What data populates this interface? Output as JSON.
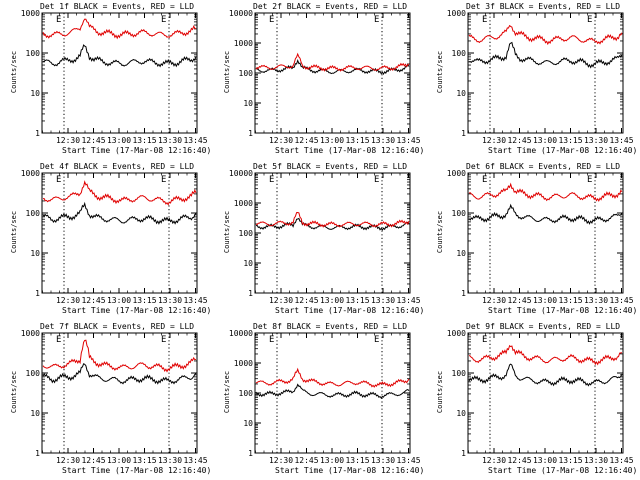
{
  "colors": {
    "events": "#000000",
    "lld": "#e00000"
  },
  "chart_data": [
    {
      "type": "line",
      "title": "Det 1f BLACK = Events, RED = LLD",
      "ylabel": "Counts/sec",
      "xlabel": "Start Time (17-Mar-08 12:16:40)",
      "yscale": "log",
      "ylim": [
        1,
        1000
      ],
      "ytick_labels": [
        "1",
        "10",
        "100",
        "1000"
      ],
      "xtick_labels": [
        "12:30",
        "12:45",
        "13:00",
        "13:15",
        "13:30",
        "13:45"
      ],
      "marker_label": "E",
      "series": [
        {
          "name": "BLACK",
          "values": [
            60,
            58,
            55,
            57,
            62,
            64,
            68,
            72,
            80,
            150,
            85,
            70,
            65,
            60,
            58,
            56,
            55,
            54,
            56,
            58,
            60,
            62,
            63,
            60,
            58,
            56,
            55,
            54,
            56,
            58,
            62,
            66,
            70,
            82
          ]
        },
        {
          "name": "RED",
          "values": [
            300,
            290,
            285,
            290,
            300,
            310,
            330,
            360,
            420,
            800,
            430,
            380,
            340,
            320,
            310,
            300,
            290,
            285,
            295,
            305,
            310,
            320,
            325,
            315,
            300,
            290,
            285,
            285,
            295,
            305,
            320,
            340,
            360,
            400
          ]
        }
      ]
    },
    {
      "type": "line",
      "title": "Det 2f BLACK = Events, RED = LLD",
      "ylabel": "Counts/sec",
      "xlabel": "Start Time (17-Mar-08 12:16:40)",
      "yscale": "log",
      "ylim": [
        1,
        10000
      ],
      "ytick_labels": [
        "1",
        "10",
        "100",
        "1000",
        "10000"
      ],
      "xtick_labels": [
        "12:30",
        "12:45",
        "13:00",
        "13:15",
        "13:30",
        "13:45"
      ],
      "marker_label": "E",
      "series": [
        {
          "name": "BLACK",
          "values": [
            130,
            125,
            120,
            120,
            125,
            130,
            135,
            140,
            145,
            280,
            145,
            130,
            125,
            120,
            118,
            115,
            112,
            110,
            112,
            115,
            118,
            120,
            122,
            120,
            118,
            115,
            112,
            112,
            115,
            118,
            125,
            135,
            145,
            165
          ]
        },
        {
          "name": "RED",
          "values": [
            160,
            155,
            150,
            150,
            155,
            160,
            165,
            170,
            175,
            360,
            175,
            160,
            155,
            150,
            148,
            145,
            142,
            140,
            142,
            145,
            148,
            150,
            152,
            150,
            148,
            145,
            142,
            142,
            145,
            148,
            155,
            165,
            175,
            200
          ]
        }
      ]
    },
    {
      "type": "line",
      "title": "Det 3f BLACK = Events, RED = LLD",
      "ylabel": "Counts/sec",
      "xlabel": "Start Time (17-Mar-08 12:16:40)",
      "yscale": "log",
      "ylim": [
        1,
        1000
      ],
      "ytick_labels": [
        "1",
        "10",
        "100",
        "1000"
      ],
      "xtick_labels": [
        "12:30",
        "12:45",
        "13:00",
        "13:15",
        "13:30",
        "13:45"
      ],
      "marker_label": "E",
      "series": [
        {
          "name": "BLACK",
          "values": [
            70,
            65,
            60,
            62,
            66,
            70,
            72,
            76,
            85,
            170,
            90,
            75,
            70,
            66,
            62,
            60,
            58,
            56,
            58,
            60,
            62,
            64,
            65,
            62,
            60,
            56,
            54,
            52,
            55,
            58,
            62,
            66,
            70,
            90
          ]
        },
        {
          "name": "RED",
          "values": [
            240,
            225,
            215,
            220,
            235,
            250,
            260,
            280,
            320,
            520,
            330,
            290,
            260,
            245,
            235,
            225,
            215,
            205,
            210,
            220,
            230,
            235,
            240,
            230,
            220,
            210,
            200,
            195,
            205,
            215,
            230,
            245,
            260,
            320
          ]
        }
      ]
    },
    {
      "type": "line",
      "title": "Det 4f BLACK = Events, RED = LLD",
      "ylabel": "Counts/sec",
      "xlabel": "Start Time (17-Mar-08 12:16:40)",
      "yscale": "log",
      "ylim": [
        1,
        1000
      ],
      "ytick_labels": [
        "1",
        "10",
        "100",
        "1000"
      ],
      "xtick_labels": [
        "12:30",
        "12:45",
        "13:00",
        "13:15",
        "13:30",
        "13:45"
      ],
      "marker_label": "E",
      "series": [
        {
          "name": "BLACK",
          "values": [
            80,
            75,
            70,
            72,
            76,
            80,
            82,
            86,
            95,
            160,
            95,
            80,
            75,
            72,
            70,
            68,
            66,
            64,
            66,
            68,
            70,
            72,
            73,
            70,
            68,
            66,
            64,
            62,
            65,
            68,
            72,
            76,
            80,
            100
          ]
        },
        {
          "name": "RED",
          "values": [
            240,
            225,
            215,
            220,
            235,
            250,
            260,
            280,
            320,
            600,
            330,
            290,
            260,
            245,
            235,
            225,
            215,
            205,
            210,
            220,
            230,
            235,
            240,
            230,
            220,
            210,
            200,
            195,
            205,
            215,
            230,
            245,
            260,
            320
          ]
        }
      ]
    },
    {
      "type": "line",
      "title": "Det 5f BLACK = Events, RED = LLD",
      "ylabel": "Counts/sec",
      "xlabel": "Start Time (17-Mar-08 12:16:40)",
      "yscale": "log",
      "ylim": [
        1,
        10000
      ],
      "ytick_labels": [
        "1",
        "10",
        "100",
        "1000",
        "10000"
      ],
      "xtick_labels": [
        "12:30",
        "12:45",
        "13:00",
        "13:15",
        "13:30",
        "13:45"
      ],
      "marker_label": "E",
      "series": [
        {
          "name": "BLACK",
          "values": [
            170,
            165,
            160,
            160,
            165,
            170,
            175,
            180,
            185,
            350,
            185,
            170,
            165,
            160,
            158,
            155,
            152,
            150,
            152,
            155,
            158,
            160,
            162,
            160,
            158,
            155,
            152,
            152,
            155,
            158,
            165,
            175,
            185,
            205
          ]
        },
        {
          "name": "RED",
          "values": [
            210,
            205,
            200,
            200,
            205,
            210,
            215,
            220,
            225,
            450,
            225,
            210,
            205,
            200,
            198,
            195,
            192,
            190,
            192,
            195,
            198,
            200,
            202,
            200,
            198,
            195,
            192,
            192,
            195,
            198,
            205,
            215,
            225,
            250
          ]
        }
      ]
    },
    {
      "type": "line",
      "title": "Det 6f BLACK = Events, RED = LLD",
      "ylabel": "Counts/sec",
      "xlabel": "Start Time (17-Mar-08 12:16:40)",
      "yscale": "log",
      "ylim": [
        1,
        1000
      ],
      "ytick_labels": [
        "1",
        "10",
        "100",
        "1000"
      ],
      "xtick_labels": [
        "12:30",
        "12:45",
        "13:00",
        "13:15",
        "13:30",
        "13:45"
      ],
      "marker_label": "E",
      "series": [
        {
          "name": "BLACK",
          "values": [
            80,
            75,
            70,
            72,
            76,
            80,
            82,
            86,
            95,
            130,
            95,
            85,
            78,
            74,
            72,
            70,
            68,
            66,
            68,
            70,
            72,
            74,
            75,
            72,
            70,
            68,
            66,
            64,
            67,
            70,
            74,
            78,
            82,
            100
          ]
        },
        {
          "name": "RED",
          "values": [
            280,
            265,
            255,
            260,
            275,
            290,
            300,
            320,
            340,
            550,
            350,
            320,
            300,
            285,
            275,
            265,
            255,
            245,
            250,
            260,
            270,
            275,
            280,
            270,
            260,
            250,
            240,
            235,
            245,
            255,
            270,
            285,
            300,
            340
          ]
        }
      ]
    },
    {
      "type": "line",
      "title": "Det 7f BLACK = Events, RED = LLD",
      "ylabel": "Counts/sec",
      "xlabel": "Start Time (17-Mar-08 12:16:40)",
      "yscale": "log",
      "ylim": [
        1,
        1000
      ],
      "ytick_labels": [
        "1",
        "10",
        "100",
        "1000"
      ],
      "xtick_labels": [
        "12:30",
        "12:45",
        "13:00",
        "13:15",
        "13:30",
        "13:45"
      ],
      "marker_label": "E",
      "series": [
        {
          "name": "BLACK",
          "values": [
            80,
            75,
            70,
            72,
            76,
            80,
            82,
            86,
            95,
            180,
            95,
            80,
            75,
            72,
            70,
            68,
            66,
            64,
            66,
            68,
            70,
            72,
            73,
            70,
            68,
            66,
            64,
            62,
            65,
            68,
            72,
            76,
            80,
            100
          ]
        },
        {
          "name": "RED",
          "values": [
            160,
            150,
            140,
            145,
            155,
            165,
            175,
            190,
            220,
            700,
            230,
            200,
            175,
            160,
            150,
            145,
            140,
            135,
            140,
            145,
            150,
            155,
            160,
            150,
            145,
            140,
            135,
            132,
            138,
            145,
            155,
            165,
            180,
            220
          ]
        }
      ]
    },
    {
      "type": "line",
      "title": "Det 8f BLACK = Events, RED = LLD",
      "ylabel": "Counts/sec",
      "xlabel": "Start Time (17-Mar-08 12:16:40)",
      "yscale": "log",
      "ylim": [
        1,
        10000
      ],
      "ytick_labels": [
        "1",
        "10",
        "100",
        "1000",
        "10000"
      ],
      "xtick_labels": [
        "12:30",
        "12:45",
        "13:00",
        "13:15",
        "13:30",
        "13:45"
      ],
      "marker_label": "E",
      "series": [
        {
          "name": "BLACK",
          "values": [
            100,
            95,
            90,
            92,
            96,
            100,
            102,
            106,
            115,
            200,
            115,
            100,
            95,
            92,
            90,
            88,
            86,
            84,
            86,
            88,
            90,
            92,
            93,
            90,
            88,
            86,
            84,
            82,
            85,
            88,
            92,
            96,
            100,
            120
          ]
        },
        {
          "name": "RED",
          "values": [
            230,
            220,
            210,
            215,
            225,
            235,
            245,
            260,
            290,
            520,
            300,
            270,
            245,
            230,
            220,
            210,
            200,
            195,
            200,
            210,
            215,
            220,
            225,
            215,
            205,
            195,
            190,
            185,
            195,
            205,
            215,
            230,
            245,
            290
          ]
        }
      ]
    },
    {
      "type": "line",
      "title": "Det 9f BLACK = Events, RED = LLD",
      "ylabel": "Counts/sec",
      "xlabel": "Start Time (17-Mar-08 12:16:40)",
      "yscale": "log",
      "ylim": [
        1,
        1000
      ],
      "ytick_labels": [
        "1",
        "10",
        "100",
        "1000"
      ],
      "xtick_labels": [
        "12:30",
        "12:45",
        "13:00",
        "13:15",
        "13:30",
        "13:45"
      ],
      "marker_label": "E",
      "series": [
        {
          "name": "BLACK",
          "values": [
            75,
            70,
            65,
            68,
            72,
            76,
            78,
            82,
            90,
            150,
            90,
            76,
            70,
            67,
            65,
            62,
            60,
            58,
            60,
            62,
            64,
            66,
            67,
            64,
            62,
            60,
            58,
            56,
            59,
            62,
            66,
            70,
            74,
            95
          ]
        },
        {
          "name": "RED",
          "values": [
            240,
            225,
            215,
            220,
            235,
            250,
            260,
            280,
            320,
            560,
            330,
            290,
            260,
            245,
            235,
            225,
            215,
            205,
            210,
            220,
            230,
            235,
            240,
            230,
            220,
            210,
            200,
            195,
            205,
            215,
            230,
            245,
            260,
            320
          ]
        }
      ]
    }
  ]
}
